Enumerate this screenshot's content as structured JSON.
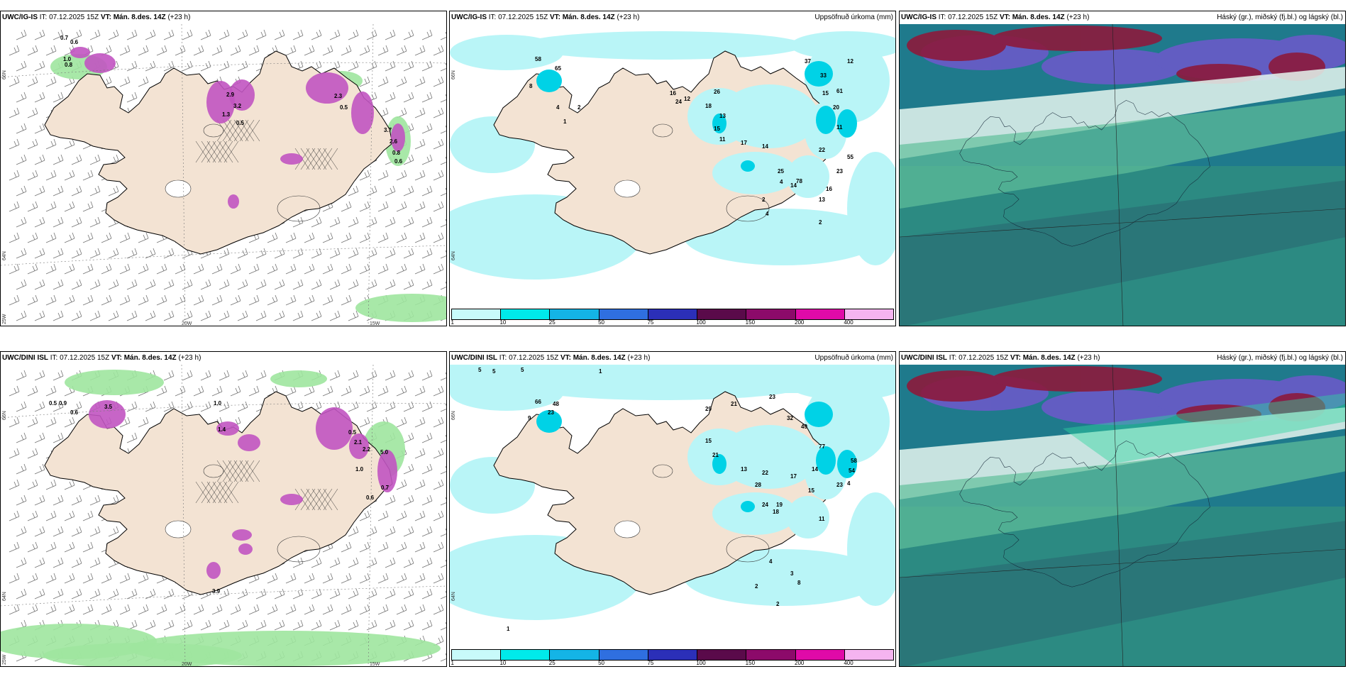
{
  "panels": [
    {
      "row": 0,
      "col": 0,
      "title_model": "UWC/IG-IS",
      "title_it": "IT: 07.12.2025 15Z",
      "title_vt": "VT: Mán. 8.des. 14Z",
      "title_lead": "(+23 h)",
      "right_label": "",
      "lat_labels": [
        "66N",
        "64N",
        "25W"
      ],
      "lon_labels": [
        "20W",
        "15W"
      ],
      "precip_values": [
        "0.7",
        "0.6",
        "1.0",
        "0.8",
        "2.9",
        "3.2",
        "1.3",
        "0.5",
        "2.3",
        "0.5",
        "3.7",
        "2.6",
        "0.8",
        "0.6"
      ]
    },
    {
      "row": 0,
      "col": 1,
      "title_model": "UWC/IG-IS",
      "title_it": "IT: 07.12.2025 15Z",
      "title_vt": "VT: Mán. 8.des. 14Z",
      "title_lead": "(+23 h)",
      "right_label": "Uppsöfnuð úrkoma (mm)",
      "lat_labels": [
        "66N",
        "64N"
      ],
      "lon_labels": [],
      "precip_values": [
        "58",
        "65",
        "8",
        "4",
        "2",
        "1",
        "37",
        "12",
        "33",
        "15",
        "61",
        "16",
        "24",
        "12",
        "26",
        "18",
        "13",
        "15",
        "11",
        "17",
        "14",
        "25",
        "4",
        "20",
        "11",
        "22",
        "78",
        "55",
        "23",
        "16",
        "13",
        "14",
        "2",
        "4",
        "2"
      ]
    },
    {
      "row": 0,
      "col": 2,
      "title_model": "UWC/IG-IS",
      "title_it": "IT: 07.12.2025 15Z",
      "title_vt": "VT: Mán. 8.des. 14Z",
      "title_lead": "(+23 h)",
      "right_label": "Háský (gr.), miðský (fj.bl.) og lágský (bl.)",
      "lat_labels": [],
      "lon_labels": [],
      "precip_values": []
    },
    {
      "row": 1,
      "col": 0,
      "title_model": "UWC/DINI ISL",
      "title_it": "IT: 07.12.2025 15Z",
      "title_vt": "VT: Mán. 8.des. 14Z",
      "title_lead": "(+23 h)",
      "right_label": "",
      "lat_labels": [
        "66N",
        "64N",
        "25W"
      ],
      "lon_labels": [
        "20W",
        "15W"
      ],
      "precip_values": [
        "0.5",
        "0.9",
        "1.0",
        "0.6",
        "3.5",
        "1.4",
        "0.5",
        "2.1",
        "2.2",
        "5.0",
        "1.0",
        "0.7",
        "0.6",
        "3.9"
      ]
    },
    {
      "row": 1,
      "col": 1,
      "title_model": "UWC/DINI ISL",
      "title_it": "IT: 07.12.2025 15Z",
      "title_vt": "VT: Mán. 8.des. 14Z",
      "title_lead": "(+23 h)",
      "right_label": "Uppsöfnuð úrkoma (mm)",
      "lat_labels": [
        "66N",
        "64N"
      ],
      "lon_labels": [],
      "precip_values": [
        "5",
        "5",
        "5",
        "1",
        "66",
        "48",
        "23",
        "9",
        "21",
        "29",
        "23",
        "32",
        "49",
        "77",
        "58",
        "54",
        "23",
        "15",
        "21",
        "13",
        "22",
        "28",
        "24",
        "19",
        "18",
        "17",
        "14",
        "15",
        "4",
        "11",
        "4",
        "3",
        "8",
        "2",
        "1",
        "2"
      ]
    },
    {
      "row": 1,
      "col": 2,
      "title_model": "UWC/DINI ISL",
      "title_it": "IT: 07.12.2025 15Z",
      "title_vt": "VT: Mán. 8.des. 14Z",
      "title_lead": "(+23 h)",
      "right_label": "Háský (gr.), miðský (fj.bl.) og lágský (bl.)",
      "lat_labels": [],
      "lon_labels": [],
      "precip_values": []
    }
  ],
  "colorbar": {
    "ticks": [
      "1",
      "10",
      "25",
      "50",
      "75",
      "100",
      "150",
      "200",
      "400"
    ],
    "colors": [
      "#c8fafa",
      "#00eaea",
      "#14b4e6",
      "#2f6fe0",
      "#2b2fb8",
      "#5a0a4a",
      "#8c0a6a",
      "#e00aa8",
      "#f5b4f0"
    ]
  },
  "colors": {
    "land": "#f3e3d3",
    "sea_light": "#b9f5f7",
    "precip_magenta": "#c154c1",
    "precip_green": "#9ee59e",
    "cloud_teal": "#2e8a8e",
    "cloud_purple": "#6a5ac8",
    "cloud_maroon": "#8c1a3c"
  }
}
